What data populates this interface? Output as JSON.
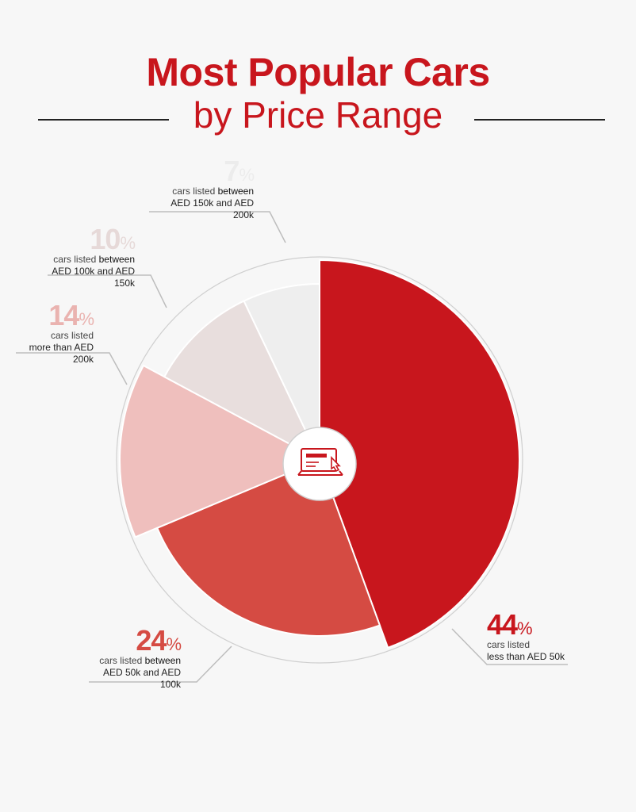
{
  "header": {
    "title": "Most Popular Cars",
    "subtitle": "by Price Range",
    "title_color": "#c8161d"
  },
  "chart_data": {
    "type": "pie",
    "title": "Most Popular Cars by Price Range",
    "slices": [
      {
        "value": 44,
        "pct_label": "44",
        "line1_pre": "cars listed",
        "line1_post": "",
        "line2": "less than AED 50k",
        "color": "#c8161d",
        "pct_color": "#c8161d"
      },
      {
        "value": 24,
        "pct_label": "24",
        "line1_pre": "cars listed",
        "line1_post": "between",
        "line2": "AED 50k and AED 100k",
        "color": "#d54b43",
        "pct_color": "#d54b43"
      },
      {
        "value": 14,
        "pct_label": "14",
        "line1_pre": "cars listed",
        "line1_post": "",
        "line2": "more than AED 200k",
        "color": "#efbfbd",
        "pct_color": "#eab3b0"
      },
      {
        "value": 10,
        "pct_label": "10",
        "line1_pre": "cars listed",
        "line1_post": "between",
        "line2": "AED 100k and AED 150k",
        "color": "#e8dedd",
        "pct_color": "#e6d9d8"
      },
      {
        "value": 7,
        "pct_label": "7",
        "line1_pre": "cars listed",
        "line1_post": "between",
        "line2": "AED 150k and AED 200k",
        "color": "#eeeeee",
        "pct_color": "#ececec"
      }
    ],
    "center_icon": "laptop-click-icon",
    "legend": "none"
  }
}
